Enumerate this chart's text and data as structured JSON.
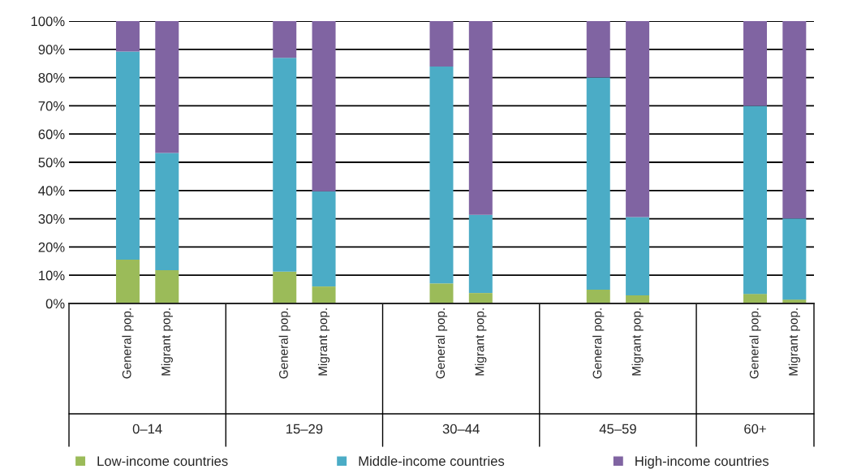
{
  "chart_data": {
    "type": "bar",
    "stacked": true,
    "categories": [
      null,
      "General pop.",
      "Migrant pop.",
      null,
      null,
      "General pop.",
      "Migrant pop.",
      null,
      null,
      "General pop.",
      "Migrant pop.",
      null,
      null,
      "General pop.",
      "Migrant pop.",
      null,
      null,
      "General pop.",
      "Migrant pop."
    ],
    "series": [
      {
        "name": "Low-income countries",
        "color": "#9bbb59",
        "values": [
          null,
          15.5,
          11.8,
          null,
          null,
          11.3,
          6.0,
          null,
          null,
          7.1,
          3.7,
          null,
          null,
          4.9,
          2.9,
          null,
          null,
          3.4,
          1.4
        ]
      },
      {
        "name": "Middle-income countries",
        "color": "#4bacc6",
        "values": [
          null,
          73.7,
          41.5,
          null,
          null,
          75.7,
          33.7,
          null,
          null,
          76.8,
          27.7,
          null,
          null,
          75.1,
          27.7,
          null,
          null,
          66.6,
          28.7
        ]
      },
      {
        "name": "High-income countries",
        "color": "#8064a2",
        "values": [
          null,
          10.8,
          46.7,
          null,
          null,
          13.0,
          60.3,
          null,
          null,
          16.1,
          68.6,
          null,
          null,
          20.0,
          69.4,
          null,
          null,
          30.0,
          69.9
        ]
      }
    ],
    "annotations": [
      "0–14",
      "15–29",
      "30–44",
      "45–59",
      "60+"
    ],
    "ylim": [
      0,
      100
    ],
    "yticks": [
      {
        "value": 0,
        "label": "0%"
      },
      {
        "value": 10,
        "label": "10%"
      },
      {
        "value": 20,
        "label": "20%"
      },
      {
        "value": 30,
        "label": "30%"
      },
      {
        "value": 40,
        "label": "40%"
      },
      {
        "value": 50,
        "label": "50%"
      },
      {
        "value": 60,
        "label": "60%"
      },
      {
        "value": 70,
        "label": "70%"
      },
      {
        "value": 80,
        "label": "80%"
      },
      {
        "value": 90,
        "label": "90%"
      },
      {
        "value": 100,
        "label": "100%"
      }
    ],
    "grid": "y",
    "legend": "bottom"
  }
}
